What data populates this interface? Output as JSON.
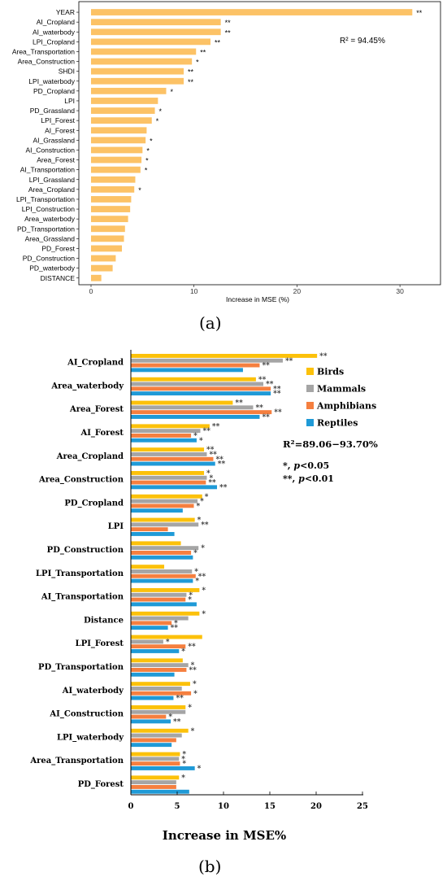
{
  "panel_labels": {
    "a": "(a)",
    "b": "(b)"
  },
  "colors": {
    "a_bar": "#fcc266",
    "birds": "#fcc10a",
    "mammals": "#a5a5a5",
    "amphibians": "#f57f3f",
    "reptiles": "#1f9ad7"
  },
  "chart_data": [
    {
      "type": "bar",
      "orientation": "horizontal",
      "categories": [
        "YEAR",
        "AI_Cropland",
        "AI_waterbody",
        "LPI_Cropland",
        "Area_Transportation",
        "Area_Construction",
        "SHDI",
        "LPI_waterbody",
        "PD_Cropland",
        "LPI",
        "PD_Grassland",
        "LPI_Forest",
        "AI_Forest",
        "AI_Grassland",
        "AI_Construction",
        "Area_Forest",
        "AI_Transportation",
        "LPI_Grassland",
        "Area_Cropland",
        "LPI_Transportation",
        "LPI_Construction",
        "Area_waterbody",
        "PD_Transportation",
        "Area_Grassland",
        "PD_Forest",
        "PD_Construction",
        "PD_waterbody",
        "DISTANCE"
      ],
      "values": [
        31.2,
        12.6,
        12.6,
        11.6,
        10.2,
        9.8,
        9.0,
        9.0,
        7.3,
        6.5,
        6.2,
        5.9,
        5.4,
        5.3,
        5.0,
        4.9,
        4.8,
        4.3,
        4.2,
        3.9,
        3.8,
        3.6,
        3.3,
        3.2,
        3.0,
        2.4,
        2.1,
        1.0
      ],
      "significance": [
        "**",
        "**",
        "**",
        "**",
        "**",
        "*",
        "**",
        "**",
        "*",
        "",
        "*",
        "*",
        "",
        "*",
        "*",
        "*",
        "*",
        "",
        "*",
        "",
        "",
        "",
        "",
        "",
        "",
        "",
        "",
        ""
      ],
      "xlabel": "Increase in MSE (%)",
      "xticks": [
        "0",
        "10",
        "20",
        "30"
      ],
      "xlim": [
        0,
        33.5
      ],
      "annotation": "R² = 94.45%"
    },
    {
      "type": "bar",
      "orientation": "horizontal",
      "categories": [
        "AI_Cropland",
        "Area_waterbody",
        "Area_Forest",
        "AI_Forest",
        "Area_Cropland",
        "Area_Construction",
        "PD_Cropland",
        "LPI",
        "PD_Construction",
        "LPI_Transportation",
        "AI_Transportation",
        "Distance",
        "LPI_Forest",
        "PD_Transportation",
        "AI_waterbody",
        "AI_Construction",
        "LPI_waterbody",
        "Area_Transportation",
        "PD_Forest"
      ],
      "series": [
        {
          "name": "Birds",
          "values": [
            20.1,
            13.5,
            11.0,
            8.5,
            7.9,
            7.9,
            7.7,
            6.9,
            5.4,
            3.6,
            7.4,
            7.4,
            7.7,
            5.6,
            6.4,
            5.9,
            6.2,
            5.3,
            5.2
          ],
          "significance": [
            "**",
            "**",
            "**",
            "**",
            "**",
            "*",
            "*",
            "*",
            "",
            "",
            "*",
            "*",
            "",
            "",
            "*",
            "*",
            "*",
            "*",
            "*"
          ]
        },
        {
          "name": "Mammals",
          "values": [
            16.4,
            14.3,
            13.2,
            7.5,
            8.2,
            8.2,
            7.2,
            7.3,
            7.3,
            6.6,
            6.0,
            6.2,
            3.5,
            6.2,
            5.5,
            5.9,
            5.5,
            5.2,
            4.9
          ],
          "significance": [
            "**",
            "**",
            "**",
            "**",
            "**",
            "*",
            "*",
            "**",
            "*",
            "*",
            "*",
            "",
            "*",
            "*",
            "",
            "",
            "",
            "*",
            ""
          ]
        },
        {
          "name": "Amphibians",
          "values": [
            13.9,
            15.1,
            15.2,
            6.5,
            8.9,
            8.1,
            6.8,
            4.0,
            6.5,
            7.0,
            5.9,
            4.4,
            5.9,
            6.0,
            6.5,
            3.8,
            4.9,
            5.3,
            4.9
          ],
          "significance": [
            "**",
            "**",
            "**",
            "*",
            "**",
            "**",
            "*",
            "",
            "*",
            "**",
            "*",
            "*",
            "**",
            "**",
            "*",
            "*",
            "",
            "*",
            ""
          ]
        },
        {
          "name": "Reptiles",
          "values": [
            12.1,
            15.1,
            13.9,
            7.1,
            9.1,
            9.3,
            5.6,
            4.7,
            6.7,
            6.7,
            7.1,
            4.0,
            5.2,
            4.7,
            4.6,
            4.3,
            4.4,
            6.9,
            6.3
          ],
          "significance": [
            "",
            "**",
            "**",
            "*",
            "**",
            "**",
            "",
            "",
            "",
            "*",
            "",
            "**",
            "*",
            "",
            "**",
            "**",
            "",
            "*",
            ""
          ]
        }
      ],
      "xlabel": "Increase in MSE%",
      "xticks": [
        "0",
        "5",
        "10",
        "15",
        "20",
        "25"
      ],
      "xlim": [
        0,
        25
      ],
      "annotation": "R²=89.06−93.70%",
      "notes": [
        "*, p<0.05",
        "**, p<0.01"
      ]
    }
  ]
}
